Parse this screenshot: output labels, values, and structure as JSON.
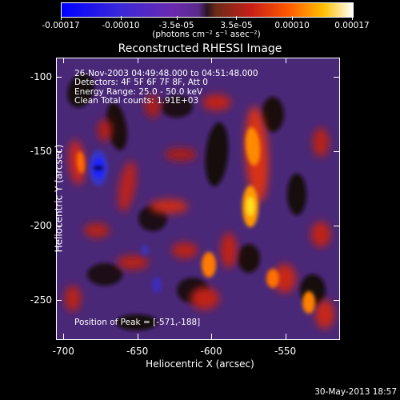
{
  "colorbar": {
    "ticks": [
      "-0.00017",
      "-0.00010",
      "-3.5e-05",
      "3.5e-05",
      "0.00010",
      "0.00017"
    ],
    "units": "(photons cm⁻² s⁻¹ asec⁻²)"
  },
  "chart_data": {
    "type": "heatmap",
    "title": "Reconstructed RHESSI Image",
    "xlabel": "Heliocentric X (arcsec)",
    "ylabel": "Heliocentric Y (arcsec)",
    "xlim": [
      -705,
      -513
    ],
    "ylim": [
      -277,
      -87
    ],
    "xticks": [
      "-700",
      "-650",
      "-600",
      "-550"
    ],
    "yticks": [
      "-100",
      "-150",
      "-200",
      "-250"
    ],
    "colorbar_range": [
      -0.00017,
      0.00017
    ],
    "colormap": "blue-purple-black-red-orange-yellow-white",
    "info_lines": [
      "26-Nov-2003 04:49:48.000 to 04:51:48.000",
      "Detectors: 4F 5F 6F 7F 8F, Att 0",
      "Energy Range: 25.0 - 50.0 keV",
      "Clean    Total counts: 1.91E+03"
    ],
    "peak_label": "Position of Peak = [-571,-188]",
    "peak": [
      -571,
      -188
    ]
  },
  "footer": {
    "timestamp": "30-May-2013 18:57"
  }
}
